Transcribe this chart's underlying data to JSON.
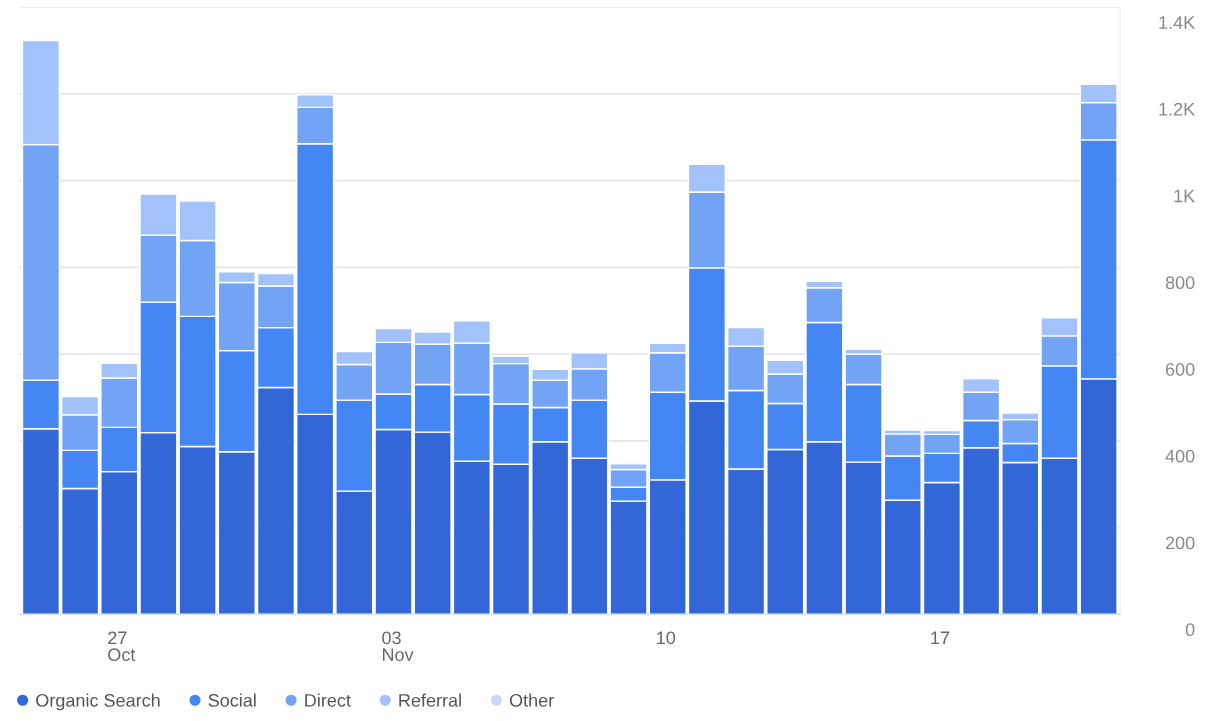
{
  "chart_data": {
    "type": "bar",
    "stacked": true,
    "categories": [
      null,
      null,
      "27\nOct",
      null,
      null,
      null,
      null,
      null,
      null,
      "03\nNov",
      null,
      null,
      null,
      null,
      null,
      null,
      "10",
      null,
      null,
      null,
      null,
      null,
      null,
      "17",
      null,
      null,
      null,
      null
    ],
    "series": [
      {
        "name": "Organic Search",
        "color": "#3366d6",
        "values": [
          428,
          290,
          329,
          419,
          387,
          375,
          523,
          461,
          284,
          426,
          420,
          353,
          346,
          398,
          360,
          261,
          310,
          492,
          335,
          380,
          398,
          351,
          263,
          304,
          384,
          350,
          360,
          543
        ]
      },
      {
        "name": "Social",
        "color": "#4486f4",
        "values": [
          112,
          88,
          102,
          301,
          300,
          233,
          138,
          624,
          210,
          82,
          110,
          154,
          139,
          79,
          134,
          32,
          202,
          307,
          181,
          106,
          275,
          179,
          102,
          67,
          63,
          44,
          213,
          551
        ]
      },
      {
        "name": "Direct",
        "color": "#73a3f5",
        "values": [
          543,
          82,
          114,
          154,
          175,
          157,
          96,
          84,
          82,
          119,
          93,
          118,
          93,
          63,
          72,
          41,
          91,
          175,
          102,
          68,
          80,
          70,
          51,
          44,
          65,
          55,
          69,
          86
        ]
      },
      {
        "name": "Referral",
        "color": "#a1c2fa",
        "values": [
          240,
          42,
          34,
          95,
          91,
          25,
          29,
          29,
          30,
          32,
          28,
          52,
          17,
          25,
          37,
          13,
          22,
          64,
          43,
          32,
          15,
          11,
          9,
          9,
          31,
          15,
          42,
          42
        ]
      },
      {
        "name": "Other",
        "color": "#c6dafc",
        "values": [
          null,
          null,
          null,
          null,
          null,
          null,
          null,
          null,
          null,
          null,
          null,
          null,
          null,
          null,
          null,
          null,
          null,
          null,
          null,
          null,
          null,
          null,
          null,
          null,
          null,
          null,
          null,
          null
        ]
      }
    ],
    "ylim": [
      0,
      1400
    ],
    "yticks": [
      0,
      200,
      400,
      600,
      800,
      {
        "value": 1000,
        "label": "1K"
      },
      {
        "value": 1200,
        "label": "1.2K"
      },
      {
        "value": 1400,
        "label": "1.4K"
      }
    ],
    "grid": "y",
    "legend": "bottom",
    "marker": "circle"
  }
}
